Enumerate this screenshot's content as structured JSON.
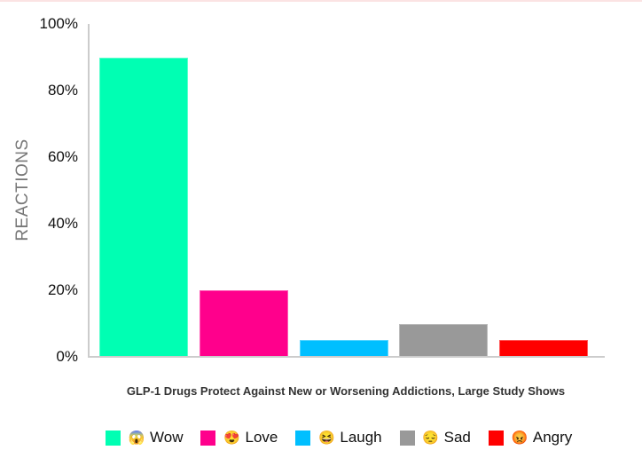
{
  "chart_data": {
    "type": "bar",
    "title": "",
    "xlabel": "GLP-1 Drugs Protect Against New or Worsening Addictions, Large Study Shows",
    "ylabel": "REACTIONS",
    "ylim": [
      0,
      100
    ],
    "yticks": [
      "0%",
      "20%",
      "40%",
      "60%",
      "80%",
      "100%"
    ],
    "grid": false,
    "legend_position": "bottom",
    "categories": [
      "Wow",
      "Love",
      "Laugh",
      "Sad",
      "Angry"
    ],
    "values": [
      90,
      20,
      5,
      10,
      5
    ],
    "colors": [
      "#00ffb3",
      "#ff008c",
      "#00bfff",
      "#999999",
      "#ff0000"
    ],
    "legend": [
      {
        "label": "Wow",
        "emoji": "😱",
        "color": "#00ffb3"
      },
      {
        "label": "Love",
        "emoji": "😍",
        "color": "#ff008c"
      },
      {
        "label": "Laugh",
        "emoji": "😆",
        "color": "#00bfff"
      },
      {
        "label": "Sad",
        "emoji": "😔",
        "color": "#999999"
      },
      {
        "label": "Angry",
        "emoji": "😡",
        "color": "#ff0000"
      }
    ]
  }
}
